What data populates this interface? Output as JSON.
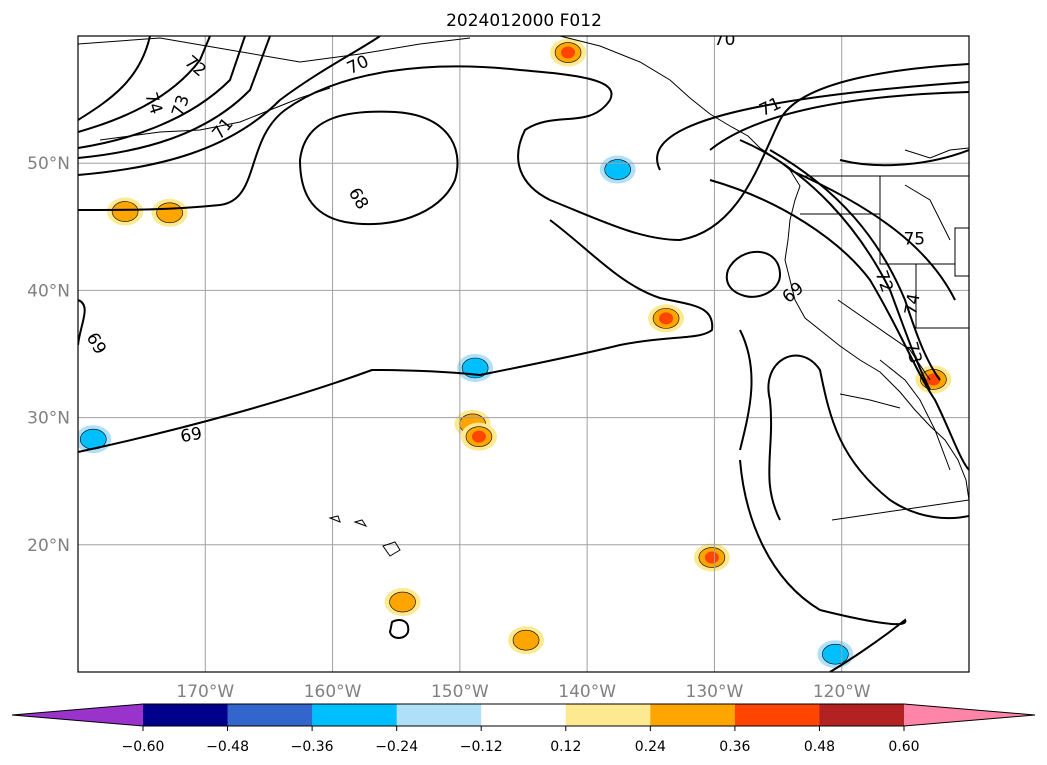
{
  "chart_data": {
    "type": "contour-map",
    "title": "2024012000 F012",
    "lon_range": [
      -180,
      -110
    ],
    "lat_range": [
      10,
      60
    ],
    "grid": true,
    "lon_ticks": [
      {
        "value": -170,
        "label": "170°W"
      },
      {
        "value": -160,
        "label": "160°W"
      },
      {
        "value": -150,
        "label": "150°W"
      },
      {
        "value": -140,
        "label": "140°W"
      },
      {
        "value": -130,
        "label": "130°W"
      },
      {
        "value": -120,
        "label": "120°W"
      }
    ],
    "lat_ticks": [
      {
        "value": 20,
        "label": "20°N"
      },
      {
        "value": 30,
        "label": "30°N"
      },
      {
        "value": 40,
        "label": "40°N"
      },
      {
        "value": 50,
        "label": "50°N"
      }
    ],
    "contour_labels": [
      {
        "text": "72",
        "lon": -170.8,
        "lat": 57.6,
        "rot": 40
      },
      {
        "text": "74",
        "lon": -174.1,
        "lat": 54.7,
        "rot": 72
      },
      {
        "text": "73",
        "lon": -171.9,
        "lat": 54.5,
        "rot": -72
      },
      {
        "text": "71",
        "lon": -168.6,
        "lat": 52.7,
        "rot": -50
      },
      {
        "text": "70",
        "lon": -158.0,
        "lat": 57.7,
        "rot": -25
      },
      {
        "text": "70",
        "lon": -129.2,
        "lat": 59.7,
        "rot": 0
      },
      {
        "text": "71",
        "lon": -125.6,
        "lat": 54.4,
        "rot": -25
      },
      {
        "text": "68",
        "lon": -158.0,
        "lat": 47.2,
        "rot": 60
      },
      {
        "text": "75",
        "lon": -114.3,
        "lat": 44.0,
        "rot": 0
      },
      {
        "text": "69",
        "lon": -123.8,
        "lat": 39.8,
        "rot": -40
      },
      {
        "text": "72",
        "lon": -116.7,
        "lat": 40.7,
        "rot": 70
      },
      {
        "text": "74",
        "lon": -114.4,
        "lat": 38.9,
        "rot": -80
      },
      {
        "text": "73",
        "lon": -114.4,
        "lat": 35.1,
        "rot": 75
      },
      {
        "text": "69",
        "lon": -178.6,
        "lat": 35.8,
        "rot": 60
      },
      {
        "text": "69",
        "lon": -171.1,
        "lat": 28.6,
        "rot": -10
      }
    ],
    "colorbar": {
      "orientation": "horizontal",
      "extend": "both",
      "levels": [
        -0.6,
        -0.48,
        -0.36,
        -0.24,
        -0.12,
        0.12,
        0.24,
        0.36,
        0.48,
        0.6
      ],
      "tick_labels": [
        "−0.60",
        "−0.48",
        "−0.36",
        "−0.24",
        "−0.12",
        "0.12",
        "0.24",
        "0.36",
        "0.48",
        "0.60"
      ],
      "colors": [
        "#9933cc",
        "#00008b",
        "#3366cc",
        "#00bfff",
        "#b0e0f8",
        "#ffffff",
        "#fde98f",
        "#ffa500",
        "#ff4500",
        "#b22222",
        "#ff85a8"
      ]
    },
    "shaded_cells": [
      {
        "lon": -149.0,
        "lat": 29.5,
        "value": 0.3
      },
      {
        "lon": -148.5,
        "lat": 28.5,
        "value": 0.42
      },
      {
        "lon": -133.8,
        "lat": 37.8,
        "value": 0.45
      },
      {
        "lon": -130.2,
        "lat": 19.0,
        "value": 0.42
      },
      {
        "lon": -112.8,
        "lat": 33.0,
        "value": 0.45
      },
      {
        "lon": -154.5,
        "lat": 15.5,
        "value": 0.3
      },
      {
        "lon": -144.8,
        "lat": 12.5,
        "value": 0.3
      },
      {
        "lon": -141.5,
        "lat": 58.7,
        "value": 0.36
      },
      {
        "lon": -148.8,
        "lat": 33.9,
        "value": -0.3
      },
      {
        "lon": -120.5,
        "lat": 11.4,
        "value": -0.3
      },
      {
        "lon": -137.6,
        "lat": 49.5,
        "value": -0.2
      },
      {
        "lon": -178.8,
        "lat": 28.3,
        "value": -0.3
      },
      {
        "lon": -176.3,
        "lat": 46.2,
        "value": 0.3
      },
      {
        "lon": -172.8,
        "lat": 46.1,
        "value": 0.3
      }
    ]
  }
}
